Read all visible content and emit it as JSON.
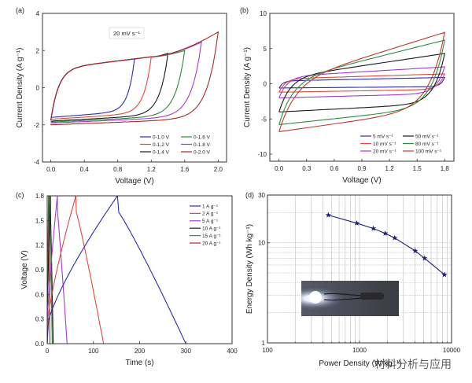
{
  "chart_data": [
    {
      "id": "a",
      "type": "line",
      "panel_label": "(a)",
      "xlabel": "Voltage (V)",
      "ylabel": "Current Density (A g⁻¹)",
      "xlim": [
        -0.1,
        2.1
      ],
      "ylim": [
        -4,
        4
      ],
      "xticks": [
        "0.0",
        "0.4",
        "0.8",
        "1.2",
        "1.6",
        "2.0"
      ],
      "xtick_values": [
        0,
        0.4,
        0.8,
        1.2,
        1.6,
        2.0
      ],
      "yticks": [
        "-4",
        "-2",
        "0",
        "2",
        "4"
      ],
      "ytick_values": [
        -4,
        -2,
        0,
        2,
        4
      ],
      "annotation": "20 mV s⁻¹",
      "legend_position": "bottom-right",
      "series": [
        {
          "name": "0-1.0 V",
          "color": "#2b2bb8",
          "vmax": 1.0,
          "i_top_end": 1.55,
          "i_bottom_start": -1.6
        },
        {
          "name": "0-1.2 V",
          "color": "#e04a3a",
          "vmax": 1.2,
          "i_top_end": 1.65,
          "i_bottom_start": -1.7
        },
        {
          "name": "0-1.4 V",
          "color": "#1a1a1a",
          "vmax": 1.4,
          "i_top_end": 1.85,
          "i_bottom_start": -1.8
        },
        {
          "name": "0-1.6 V",
          "color": "#2e8b3a",
          "vmax": 1.6,
          "i_top_end": 2.0,
          "i_bottom_start": -1.85
        },
        {
          "name": "0-1.8 V",
          "color": "#a23ad6",
          "vmax": 1.8,
          "i_top_end": 2.45,
          "i_bottom_start": -1.9
        },
        {
          "name": "0-2.0 V",
          "color": "#a52a2a",
          "vmax": 2.0,
          "i_top_end": 3.0,
          "i_bottom_start": -2.0
        }
      ]
    },
    {
      "id": "b",
      "type": "line",
      "panel_label": "(b)",
      "xlabel": "Voltage (V)",
      "ylabel": "Current Density (A g⁻¹)",
      "xlim": [
        -0.1,
        1.9
      ],
      "ylim": [
        -11,
        10
      ],
      "xticks": [
        "0.0",
        "0.3",
        "0.6",
        "0.9",
        "1.2",
        "1.5",
        "1.8"
      ],
      "xtick_values": [
        0,
        0.3,
        0.6,
        0.9,
        1.2,
        1.5,
        1.8
      ],
      "yticks": [
        "-10",
        "-5",
        "0",
        "5",
        "10"
      ],
      "ytick_values": [
        -10,
        -5,
        0,
        5,
        10
      ],
      "legend_position": "bottom-right",
      "series": [
        {
          "name": "5 mV s⁻¹",
          "color": "#2b2bb8",
          "i_top_start": 0.4,
          "i_top_end": 0.9,
          "i_bottom_start": -0.6,
          "i_bottom_end": -0.4
        },
        {
          "name": "10 mV s⁻¹",
          "color": "#e04a3a",
          "i_top_start": 0.7,
          "i_top_end": 1.4,
          "i_bottom_start": -1.2,
          "i_bottom_end": -0.8
        },
        {
          "name": "20 mV s⁻¹",
          "color": "#a23ad6",
          "i_top_start": 1.0,
          "i_top_end": 2.4,
          "i_bottom_start": -2.0,
          "i_bottom_end": -1.4
        },
        {
          "name": "50 mV s⁻¹",
          "color": "#1a1a1a",
          "i_top_start": 0.8,
          "i_top_end": 4.3,
          "i_bottom_start": -4.0,
          "i_bottom_end": -2.8
        },
        {
          "name": "80 mV s⁻¹",
          "color": "#2e8b3a",
          "i_top_start": 0.3,
          "i_top_end": 6.2,
          "i_bottom_start": -5.8,
          "i_bottom_end": -3.3
        },
        {
          "name": "100 mV s⁻¹",
          "color": "#c0392b",
          "i_top_start": 0.0,
          "i_top_end": 7.3,
          "i_bottom_start": -6.8,
          "i_bottom_end": -3.5
        }
      ]
    },
    {
      "id": "c",
      "type": "line",
      "panel_label": "(c)",
      "xlabel": "Time (s)",
      "ylabel": "Voltage (V)",
      "xlim": [
        0,
        400
      ],
      "ylim": [
        0,
        1.8
      ],
      "xticks": [
        "0",
        "100",
        "200",
        "300",
        "400"
      ],
      "xtick_values": [
        0,
        100,
        200,
        300,
        400
      ],
      "yticks": [
        "0.0",
        "0.3",
        "0.6",
        "0.9",
        "1.2",
        "1.5",
        "1.8"
      ],
      "ytick_values": [
        0,
        0.3,
        0.6,
        0.9,
        1.2,
        1.5,
        1.8
      ],
      "legend_position": "top-right",
      "series": [
        {
          "name": "1 A g⁻¹",
          "color": "#2b2bb8",
          "t_charge": 152,
          "t_end": 300
        },
        {
          "name": "2 A g⁻¹",
          "color": "#e04a3a",
          "t_charge": 62,
          "t_end": 122
        },
        {
          "name": "5 A g⁻¹",
          "color": "#a23ad6",
          "t_charge": 22,
          "t_end": 43
        },
        {
          "name": "10 A g⁻¹",
          "color": "#1a1a1a",
          "t_charge": 7,
          "t_end": 13
        },
        {
          "name": "15 A g⁻¹",
          "color": "#2e8b3a",
          "t_charge": 5,
          "t_end": 11
        },
        {
          "name": "20 A g⁻¹",
          "color": "#a52a2a",
          "t_charge": 3,
          "t_end": 6
        }
      ]
    },
    {
      "id": "d",
      "type": "scatter",
      "panel_label": "(d)",
      "xlabel": "Power Density (W kg⁻¹)",
      "ylabel": "Energy Density (Wh kg⁻¹)",
      "xscale": "log",
      "yscale": "log",
      "xlim": [
        100,
        10000
      ],
      "ylim": [
        1,
        30
      ],
      "xticks": [
        "100",
        "1000",
        "10000"
      ],
      "xtick_values": [
        100,
        1000,
        10000
      ],
      "yticks": [
        "1",
        "10",
        "30"
      ],
      "ytick_values": [
        1,
        10,
        30
      ],
      "grid": true,
      "marker": "star",
      "color": "#1f1f7a",
      "x": [
        458,
        933,
        1413,
        1900,
        2410,
        4030,
        5100,
        8370
      ],
      "y": [
        18.9,
        15.7,
        13.9,
        12.4,
        11.2,
        8.3,
        7.0,
        4.8
      ],
      "inset": "photo of lit LED"
    }
  ],
  "watermark": "材料分析与应用"
}
